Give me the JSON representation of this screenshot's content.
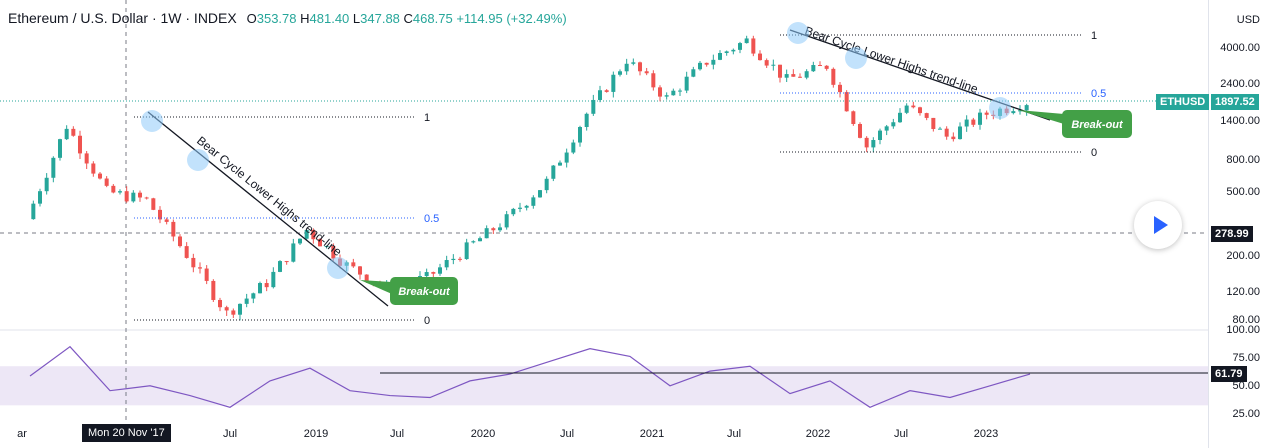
{
  "header": {
    "title": "Ethereum / U.S. Dollar · 1W · INDEX",
    "open_label": "O",
    "open": "353.78",
    "high_label": "H",
    "high": "481.40",
    "low_label": "L",
    "low": "347.88",
    "close_label": "C",
    "close": "468.75",
    "change": "+114.95 (+32.49%)"
  },
  "price_axis": {
    "currency": "USD",
    "ticks": [
      "4000.00",
      "2400.00",
      "1400.00",
      "800.00",
      "500.00",
      "200.00",
      "120.00",
      "80.00"
    ],
    "symbol_tag": "ETHUSD",
    "last_price": "1897.52",
    "crosshair_price": "278.99"
  },
  "rsi_axis": {
    "ticks": [
      "100.00",
      "75.00",
      "50.00",
      "25.00"
    ],
    "value": "61.79"
  },
  "time_axis": {
    "labels": [
      "ar",
      "Jul",
      "2019",
      "Jul",
      "2020",
      "Jul",
      "2021",
      "Jul",
      "2022",
      "Jul",
      "2023"
    ],
    "crosshair_date": "Mon 20 Nov '17"
  },
  "annotations": {
    "fib_left": {
      "level_1": "1",
      "level_05": "0.5",
      "level_0": "0"
    },
    "fib_right": {
      "level_1": "1",
      "level_05": "0.5",
      "level_0": "0"
    },
    "trendline_left": "Bear Cycle Lower Highs trend-line",
    "trendline_right": "Bear Cycle Lower Highs trend-line",
    "breakout_left": "Break-out",
    "breakout_right": "Break-out"
  },
  "colors": {
    "up": "#26a69a",
    "down": "#ef5350",
    "rsi": "#7e57c2",
    "rsi_band": "#ede7f6",
    "fib_05": "#2962ff",
    "breakout": "#43a047",
    "highlight": "#90caf9"
  },
  "chart_data": {
    "type": "candlestick",
    "title": "Ethereum / U.S. Dollar · 1W · INDEX",
    "y_scale": "log",
    "ylim": [
      75,
      6000
    ],
    "x": [
      "2017-11",
      "2018-01",
      "2018-04",
      "2018-07",
      "2018-10",
      "2018-12",
      "2019-03",
      "2019-06",
      "2019-09",
      "2019-12",
      "2020-03",
      "2020-06",
      "2020-09",
      "2020-12",
      "2021-02",
      "2021-05",
      "2021-07",
      "2021-09",
      "2021-11",
      "2022-01",
      "2022-03",
      "2022-06",
      "2022-08",
      "2022-11",
      "2023-01",
      "2023-04"
    ],
    "series": [
      {
        "name": "ETHUSD",
        "values": [
          350,
          1350,
          520,
          460,
          210,
          90,
          140,
          300,
          180,
          130,
          150,
          230,
          350,
          600,
          1600,
          3500,
          2000,
          3400,
          4600,
          2600,
          3200,
          1000,
          1800,
          1150,
          1600,
          1897
        ]
      }
    ],
    "rsi": {
      "levels": [
        30,
        70
      ],
      "ylim": [
        15,
        105
      ],
      "values": [
        60,
        90,
        45,
        50,
        40,
        28,
        55,
        68,
        45,
        40,
        38,
        55,
        62,
        75,
        88,
        80,
        50,
        65,
        70,
        42,
        55,
        28,
        45,
        38,
        50,
        62
      ]
    }
  }
}
